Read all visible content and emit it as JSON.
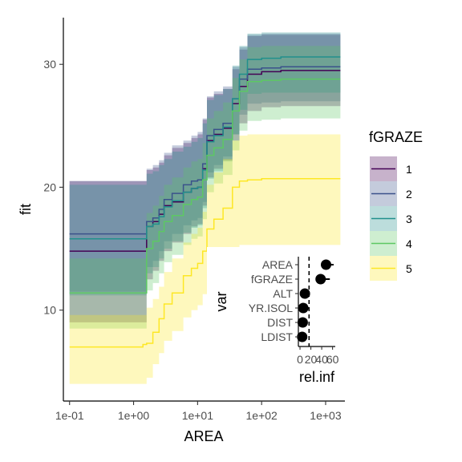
{
  "chart_data": [
    {
      "type": "line",
      "xlabel": "AREA",
      "ylabel": "fit",
      "x_scale": "log10",
      "xlim": [
        0.08,
        2000
      ],
      "ylim": [
        2.6,
        33.8
      ],
      "x_ticks": [
        {
          "value": 0.1,
          "label": "1e-01"
        },
        {
          "value": 1,
          "label": "1e+00"
        },
        {
          "value": 10,
          "label": "1e+01"
        },
        {
          "value": 100,
          "label": "1e+02"
        },
        {
          "value": 1000,
          "label": "1e+03"
        }
      ],
      "y_ticks": [
        {
          "value": 10,
          "label": "10"
        },
        {
          "value": 20,
          "label": "20"
        },
        {
          "value": 30,
          "label": "30"
        }
      ],
      "grid": false,
      "legend": {
        "title": "fGRAZE",
        "placement": "right",
        "entries": [
          {
            "label": "1",
            "color": "#440154"
          },
          {
            "label": "2",
            "color": "#3B528B"
          },
          {
            "label": "3",
            "color": "#21908C"
          },
          {
            "label": "4",
            "color": "#5DC863"
          },
          {
            "label": "5",
            "color": "#FDE725"
          }
        ]
      },
      "x": [
        0.1,
        1.4,
        1.6,
        2.0,
        2.5,
        3.0,
        4.0,
        6.0,
        8.0,
        10.0,
        12.0,
        14.0,
        18.0,
        25.0,
        35.0,
        45.0,
        60.0,
        100.0,
        200.0,
        500.0,
        1700.0
      ],
      "series": [
        {
          "name": "1",
          "color": "#440154",
          "values": [
            14.8,
            14.8,
            16.8,
            17.2,
            17.8,
            18.5,
            18.8,
            19.6,
            19.9,
            20.0,
            21.5,
            23.8,
            24.3,
            24.8,
            26.8,
            28.2,
            29.2,
            29.4,
            29.5,
            29.5,
            29.5
          ],
          "lower": [
            9.0,
            9.0,
            12.5,
            13.2,
            14.0,
            14.8,
            15.5,
            16.2,
            16.8,
            17.0,
            18.5,
            20.8,
            21.5,
            22.2,
            23.8,
            25.2,
            26.2,
            26.5,
            26.6,
            26.6,
            26.6
          ],
          "upper": [
            20.5,
            20.5,
            21.4,
            21.6,
            22.0,
            22.6,
            23.2,
            23.6,
            24.0,
            24.3,
            25.5,
            27.3,
            27.6,
            28.0,
            29.6,
            31.2,
            32.3,
            32.4,
            32.4,
            32.4,
            32.4
          ]
        },
        {
          "name": "2",
          "color": "#3B528B",
          "values": [
            16.2,
            16.2,
            17.2,
            17.5,
            18.2,
            19.0,
            19.5,
            20.2,
            20.5,
            20.6,
            21.9,
            24.2,
            24.7,
            25.2,
            27.2,
            28.8,
            29.6,
            29.7,
            29.8,
            29.8,
            29.8
          ],
          "lower": [
            11.5,
            11.5,
            13.5,
            14.0,
            14.8,
            15.6,
            16.2,
            16.9,
            17.3,
            17.5,
            18.8,
            21.2,
            21.8,
            22.5,
            24.3,
            25.9,
            26.8,
            26.9,
            27.0,
            27.0,
            27.0
          ],
          "upper": [
            20.5,
            20.5,
            21.5,
            21.8,
            22.2,
            22.8,
            23.4,
            23.8,
            24.2,
            24.5,
            25.6,
            27.4,
            27.8,
            28.2,
            29.8,
            31.4,
            32.4,
            32.5,
            32.5,
            32.5,
            32.5
          ]
        },
        {
          "name": "3",
          "color": "#21908C",
          "values": [
            15.8,
            15.8,
            16.8,
            17.0,
            17.6,
            18.4,
            18.9,
            19.6,
            19.9,
            20.0,
            21.4,
            23.7,
            24.2,
            24.9,
            27.2,
            29.2,
            30.4,
            30.5,
            30.6,
            30.6,
            30.6
          ],
          "lower": [
            11.2,
            11.2,
            13.0,
            13.5,
            14.2,
            15.0,
            15.6,
            16.3,
            16.7,
            16.9,
            18.3,
            20.7,
            21.3,
            22.1,
            24.3,
            26.3,
            27.6,
            27.7,
            27.7,
            27.7,
            27.7
          ],
          "upper": [
            20.2,
            20.2,
            21.1,
            21.3,
            21.8,
            22.3,
            22.9,
            23.3,
            23.7,
            24.0,
            25.2,
            27.1,
            27.5,
            28.0,
            29.9,
            31.5,
            32.5,
            32.6,
            32.6,
            32.6,
            32.6
          ]
        },
        {
          "name": "4",
          "color": "#5DC863",
          "values": [
            11.4,
            11.4,
            15.0,
            15.6,
            16.4,
            17.2,
            17.7,
            18.6,
            19.0,
            19.2,
            20.6,
            22.6,
            23.2,
            23.9,
            26.2,
            27.8,
            28.6,
            28.7,
            28.8,
            28.8,
            28.8
          ],
          "lower": [
            8.5,
            8.5,
            11.6,
            12.2,
            13.0,
            13.9,
            14.5,
            15.3,
            15.8,
            16.0,
            17.4,
            19.6,
            20.3,
            21.0,
            23.0,
            24.6,
            25.4,
            25.5,
            25.6,
            25.6,
            25.6
          ],
          "upper": [
            14.2,
            14.2,
            17.9,
            18.5,
            19.3,
            20.2,
            20.8,
            21.6,
            22.1,
            22.3,
            23.6,
            25.6,
            26.2,
            26.9,
            28.9,
            30.4,
            31.4,
            31.5,
            31.5,
            31.5,
            31.5
          ]
        },
        {
          "name": "5",
          "color": "#FDE725",
          "values": [
            7.0,
            7.2,
            7.3,
            8.2,
            9.3,
            10.5,
            11.4,
            12.8,
            13.4,
            13.8,
            14.8,
            16.6,
            17.4,
            18.3,
            20.0,
            20.5,
            20.6,
            20.7,
            20.7,
            20.7,
            20.7
          ],
          "lower": [
            4.0,
            4.0,
            4.5,
            5.6,
            6.5,
            7.5,
            8.3,
            9.4,
            10.0,
            10.4,
            11.3,
            12.7,
            13.4,
            14.2,
            15.1,
            15.3,
            15.3,
            15.3,
            15.3,
            15.3,
            15.3
          ],
          "upper": [
            9.6,
            9.6,
            10.2,
            10.9,
            11.9,
            13.1,
            14.2,
            15.5,
            16.2,
            16.7,
            18.0,
            20.2,
            21.2,
            22.3,
            23.8,
            24.2,
            24.3,
            24.3,
            24.3,
            24.3,
            24.3
          ]
        }
      ]
    },
    {
      "type": "scatter",
      "xlabel": "rel.inf",
      "ylabel": "var",
      "x_tick_labels": [
        "0",
        "20",
        "40",
        "60"
      ],
      "x_tick_values": [
        0,
        20,
        40,
        60
      ],
      "xlim": [
        -3,
        65
      ],
      "reference_line_x": 16.7,
      "categories": [
        "AREA",
        "fGRAZE",
        "ALT",
        "YR.ISOL",
        "DIST",
        "LDIST"
      ],
      "values": [
        48,
        38,
        9,
        6,
        5,
        4
      ],
      "lower": [
        45,
        33,
        8,
        5,
        4,
        3
      ],
      "upper": [
        62,
        55,
        10,
        7,
        6,
        5
      ]
    }
  ]
}
